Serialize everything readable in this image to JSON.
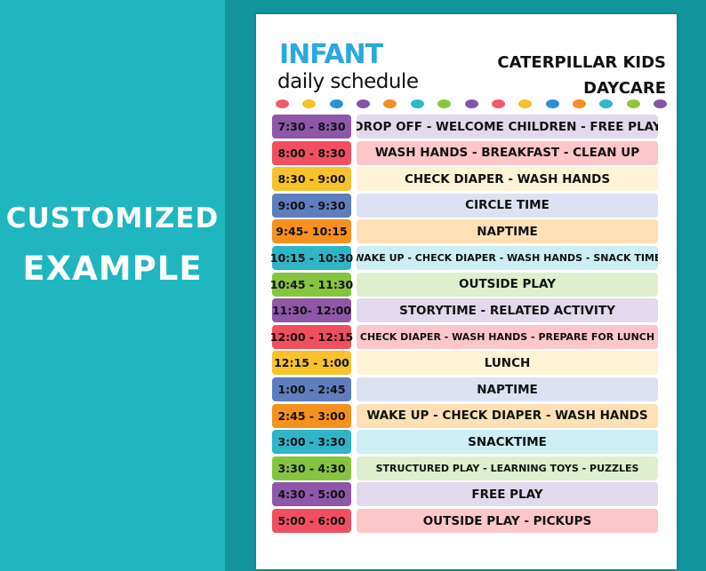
{
  "side": {
    "line1": "CUSTOMIZED",
    "line2": "EXAMPLE"
  },
  "sheet": {
    "title": "INFANT",
    "subtitle": "daily schedule",
    "daycare_line1": "CATERPILLAR KIDS",
    "daycare_line2": "DAYCARE"
  },
  "dot_colors": [
    "#ef5a70",
    "#f4c227",
    "#2e8fd4",
    "#8354a8",
    "#f3901f",
    "#2db8c8",
    "#8cc63f",
    "#8354a8",
    "#ef5a70",
    "#f4c227",
    "#2e8fd4",
    "#f3901f",
    "#2db8c8",
    "#8cc63f",
    "#8354a8"
  ],
  "colors": {
    "purple": "#8e57a8",
    "red": "#ef4f5f",
    "yellow": "#f8c22b",
    "blue": "#5e7dbe",
    "orange": "#f6901e",
    "teal": "#2fb4c8",
    "green": "#86c440",
    "purple_light": "#e2d9ec",
    "red_light": "#fcc6cb",
    "yellow_light": "#fef4d5",
    "blue_light": "#dde2f2",
    "orange_light": "#fde0b6",
    "teal_light": "#cdeef3",
    "green_light": "#ddefcc"
  },
  "schedule": [
    {
      "time": "7:30 - 8:30",
      "activity": "DROP OFF - WELCOME CHILDREN - FREE PLAY",
      "color": "purple",
      "small": false
    },
    {
      "time": "8:00 - 8:30",
      "activity": "WASH HANDS - BREAKFAST - CLEAN UP",
      "color": "red",
      "small": false
    },
    {
      "time": "8:30 - 9:00",
      "activity": "CHECK DIAPER - WASH HANDS",
      "color": "yellow",
      "small": false
    },
    {
      "time": "9:00 - 9:30",
      "activity": "CIRCLE TIME",
      "color": "blue",
      "small": false
    },
    {
      "time": "9:45- 10:15",
      "activity": "NAPTIME",
      "color": "orange",
      "small": false
    },
    {
      "time": "10:15 - 10:30",
      "activity": "WAKE UP - CHECK DIAPER - WASH HANDS - SNACK TIME",
      "color": "teal",
      "small": true
    },
    {
      "time": "10:45 - 11:30",
      "activity": "OUTSIDE PLAY",
      "color": "green",
      "small": false
    },
    {
      "time": "11:30- 12:00",
      "activity": "STORYTIME - RELATED ACTIVITY",
      "color": "purple",
      "small": false
    },
    {
      "time": "12:00 - 12:15",
      "activity": "CHECK DIAPER - WASH HANDS - PREPARE FOR LUNCH",
      "color": "red",
      "small": true
    },
    {
      "time": "12:15 - 1:00",
      "activity": "LUNCH",
      "color": "yellow",
      "small": false
    },
    {
      "time": "1:00 - 2:45",
      "activity": "NAPTIME",
      "color": "blue",
      "small": false
    },
    {
      "time": "2:45 - 3:00",
      "activity": "WAKE UP - CHECK DIAPER - WASH HANDS",
      "color": "orange",
      "small": false
    },
    {
      "time": "3:00 - 3:30",
      "activity": "SNACKTIME",
      "color": "teal",
      "small": false
    },
    {
      "time": "3:30 - 4:30",
      "activity": "STRUCTURED PLAY - LEARNING TOYS - PUZZLES",
      "color": "green",
      "small": true
    },
    {
      "time": "4:30 - 5:00",
      "activity": "FREE PLAY",
      "color": "purple",
      "small": false
    },
    {
      "time": "5:00 - 6:00",
      "activity": "OUTSIDE PLAY - PICKUPS",
      "color": "red",
      "small": false
    }
  ]
}
